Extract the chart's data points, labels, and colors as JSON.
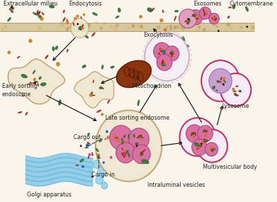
{
  "background_color": "#faf5ec",
  "labels": {
    "extracellular_milieu": "Extracellular milieu",
    "endocytosis": "Endocytosis",
    "exocytosis": "Exocytosis",
    "exosomes": "Exosomes",
    "cytomembrane": "Cytomembrane",
    "mitochondrion": "Mitochondrion",
    "early_sorting": "Early sorting\nendosome",
    "late_sorting": "Late sorting endosome",
    "cargo_out": "Cargo out",
    "cargo_in": "Cargo in",
    "golgi": "Golgi apparatus",
    "intraluminal": "Intraluminal vesicles",
    "multivesicular": "Multivesicular body",
    "lysosome": "Lysosome"
  },
  "colors": {
    "endosome_fill": "#f0e8d5",
    "endosome_border": "#c8b898",
    "mitochondrion_fill": "#8b3510",
    "mitochondrion_border": "#6b2808",
    "golgi_fill": "#85c8e8",
    "golgi_border": "#4aa8d8",
    "green_particle": "#3d7a42",
    "red_particle": "#c8352a",
    "orange_particle": "#e8820a",
    "blue_particle": "#3060c0",
    "pink_vesicle_fill": "#d870a0",
    "pink_vesicle_border": "#a84878",
    "pink_vesicle_light": "#e8a0c0",
    "exo_outer_fill": "#f0e8f0",
    "exo_outer_border": "#c8a0c0",
    "lysosome_border": "#c03060",
    "lysosome_fill": "#f5eaf5",
    "mv_border": "#c03060",
    "mv_fill": "#f5eaf5",
    "membrane_fill": "#e0d0b0",
    "membrane_dot_fill": "#c8b890",
    "arrow_color": "#1a1a1a"
  }
}
